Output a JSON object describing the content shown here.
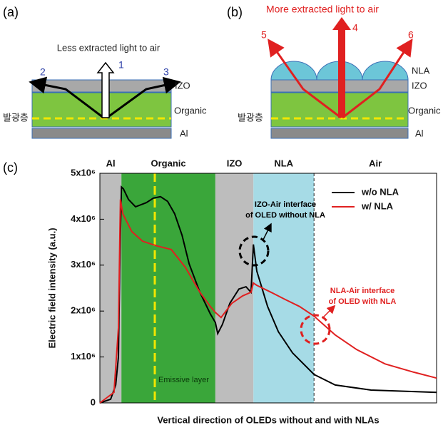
{
  "panels": {
    "a": {
      "label": "(a)",
      "caption": "Less extracted light to air",
      "rays": [
        "1",
        "2",
        "3"
      ],
      "layers": [
        "IZO",
        "Organic",
        "Al"
      ],
      "emissive": "발광층"
    },
    "b": {
      "label": "(b)",
      "caption": "More extracted light to air",
      "rays": [
        "4",
        "5",
        "6"
      ],
      "layers": [
        "NLA",
        "IZO",
        "Organic",
        "Al"
      ],
      "emissive": "발광층"
    }
  },
  "chart_data": {
    "type": "line",
    "label": "(c)",
    "x_label": "Vertical direction of OLEDs without and with NLAs",
    "y_label": "Electric field intensity (a.u.)",
    "xlim": [
      0,
      100
    ],
    "ylim": [
      0,
      5000000
    ],
    "yticks": [
      0,
      {
        "value": 1000000,
        "label": "1x10⁶"
      },
      {
        "value": 2000000,
        "label": "2x10⁶"
      },
      {
        "value": 3000000,
        "label": "3x10⁶"
      },
      {
        "value": 4000000,
        "label": "4x10⁶"
      },
      {
        "value": 5000000,
        "label": "5x10⁶"
      }
    ],
    "regions": [
      {
        "name": "Al",
        "start": 0,
        "end": 6.4,
        "color": "#bdbdbd"
      },
      {
        "name": "Organic",
        "start": 6.4,
        "end": 34.3,
        "color": "#3aa63a"
      },
      {
        "name": "IZO",
        "start": 34.3,
        "end": 45.6,
        "color": "#bdbdbd"
      },
      {
        "name": "NLA",
        "start": 45.6,
        "end": 63.6,
        "color": "#a6dbe6"
      },
      {
        "name": "Air",
        "start": 63.6,
        "end": 100,
        "color": "#ffffff"
      }
    ],
    "legend": "upper right",
    "series": [
      {
        "name": "w/o NLA",
        "color": "#000000",
        "x": [
          0,
          3.2,
          4.7,
          5.5,
          5.9,
          6.4,
          7.0,
          8.5,
          10.6,
          13.8,
          15.9,
          18.0,
          20.1,
          22.2,
          24.4,
          26.5,
          29.7,
          32.8,
          34.3,
          35.0,
          36.4,
          38.6,
          41.3,
          43.4,
          44.9,
          45.6,
          46.6,
          49.8,
          53.0,
          57.2,
          63.6,
          69.9,
          80.5,
          100
        ],
        "values": [
          0,
          80000,
          390000,
          1000000,
          2870000,
          4700000,
          4660000,
          4430000,
          4270000,
          4360000,
          4460000,
          4490000,
          4390000,
          4120000,
          3650000,
          3030000,
          2410000,
          1940000,
          1750000,
          1510000,
          1710000,
          2170000,
          2480000,
          2530000,
          2410000,
          3450000,
          2870000,
          2100000,
          1550000,
          1090000,
          620000,
          390000,
          280000,
          230000
        ]
      },
      {
        "name": "w/ NLA",
        "color": "#e02020",
        "x": [
          0,
          4.2,
          5.5,
          6.1,
          6.8,
          9.5,
          12.7,
          16.9,
          21.2,
          25.4,
          29.7,
          32.8,
          34.3,
          36.0,
          39.2,
          42.4,
          44.9,
          45.6,
          46.6,
          50.8,
          55.1,
          59.3,
          63.6,
          69.9,
          76.3,
          84.7,
          93.2,
          100
        ],
        "values": [
          0,
          230000,
          1630000,
          4430000,
          4120000,
          3730000,
          3520000,
          3420000,
          3340000,
          2950000,
          2410000,
          2100000,
          1970000,
          1860000,
          2170000,
          2330000,
          2410000,
          2610000,
          2560000,
          2410000,
          2250000,
          2100000,
          1890000,
          1480000,
          1160000,
          850000,
          670000,
          540000
        ]
      }
    ],
    "annotations": [
      "IZO-Air interface",
      "of OLED without NLA",
      "NLA-Air interface",
      "of OLED with NLA",
      "Emissive layer"
    ]
  }
}
